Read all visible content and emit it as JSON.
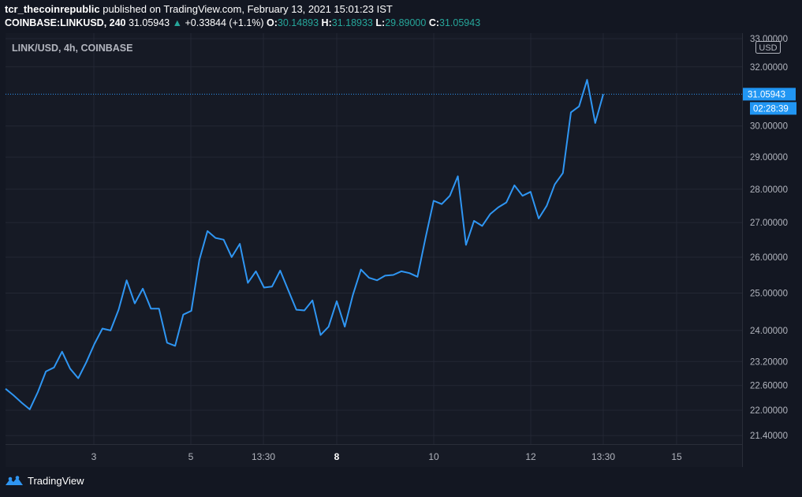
{
  "header": {
    "author": "tcr_thecoinrepublic",
    "published_text": "published on TradingView.com, February 13, 2021 15:01:23 IST",
    "symbol": "COINBASE:LINKUSD, 240",
    "last": "31.05943",
    "change": "+0.33844 (+1.1%)",
    "open_label": "O:",
    "open": "30.14893",
    "high_label": "H:",
    "high": "31.18933",
    "low_label": "L:",
    "low": "29.89000",
    "close_label": "C:",
    "close": "31.05943"
  },
  "footer": {
    "brand": "TradingView"
  },
  "colors": {
    "line": "#2f96f3",
    "up": "#26a69a",
    "grid": "#232734",
    "bg": "#131722"
  },
  "chart_data": {
    "type": "line",
    "title": "LINK/USD, 4h, COINBASE",
    "currency": "USD",
    "last_price_label": "31.05943",
    "countdown_label": "02:28:39",
    "ylim": [
      21.2,
      33.2
    ],
    "y_scale": "log",
    "x_ticks": [
      "3",
      "5",
      "13:30",
      "8",
      "10",
      "12",
      "13:30",
      "15"
    ],
    "x_ticks_bold": [
      "8"
    ],
    "y_ticks": [
      {
        "value": 33,
        "label": "33.00000"
      },
      {
        "value": 32,
        "label": "32.00000"
      },
      {
        "value": 30,
        "label": "30.00000"
      },
      {
        "value": 29,
        "label": "29.00000"
      },
      {
        "value": 28,
        "label": "28.00000"
      },
      {
        "value": 27,
        "label": "27.00000"
      },
      {
        "value": 26,
        "label": "26.00000"
      },
      {
        "value": 25,
        "label": "25.00000"
      },
      {
        "value": 24,
        "label": "24.00000"
      },
      {
        "value": 23.2,
        "label": "23.20000"
      },
      {
        "value": 22.6,
        "label": "22.60000"
      },
      {
        "value": 22,
        "label": "22.00000"
      },
      {
        "value": 21.4,
        "label": "21.40000"
      }
    ],
    "series": [
      {
        "values": [
          22.52,
          22.36,
          22.18,
          22.02,
          22.44,
          22.95,
          23.05,
          23.45,
          23.02,
          22.78,
          23.18,
          23.65,
          24.05,
          24.0,
          24.55,
          25.35,
          24.72,
          25.12,
          24.58,
          24.58,
          23.68,
          23.6,
          24.42,
          24.52,
          25.92,
          26.75,
          26.55,
          26.5,
          26.0,
          26.38,
          25.28,
          25.6,
          25.15,
          25.18,
          25.62,
          25.08,
          24.55,
          24.53,
          24.8,
          23.88,
          24.1,
          24.78,
          24.1,
          24.95,
          25.65,
          25.42,
          25.35,
          25.48,
          25.5,
          25.6,
          25.55,
          25.45,
          26.55,
          27.65,
          27.55,
          27.8,
          28.4,
          26.35,
          27.05,
          26.9,
          27.25,
          27.45,
          27.6,
          28.12,
          27.8,
          27.92,
          27.12,
          27.5,
          28.15,
          28.5,
          30.45,
          30.65,
          31.55,
          30.1,
          31.06
        ]
      }
    ]
  }
}
